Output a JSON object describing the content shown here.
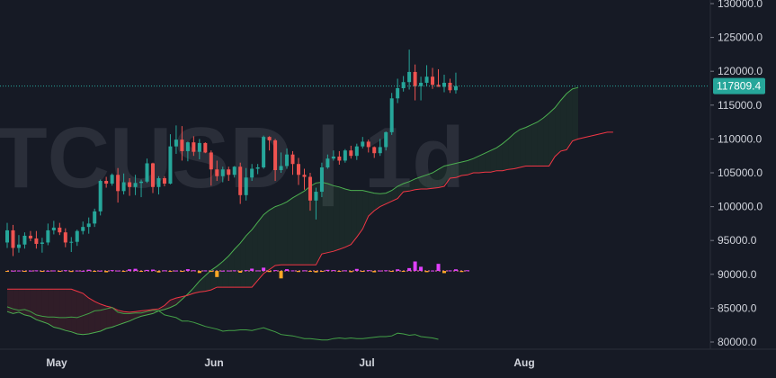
{
  "watermark": "TCUSD | 1d",
  "current_price_label": "117809.4",
  "colors": {
    "background": "#161a25",
    "up": "#26a69a",
    "down": "#ef5350",
    "cloud_green": "#4caf50",
    "cloud_red": "#f23645",
    "leading_span_a": "#4caf50",
    "leading_span_b": "#f23645",
    "lagging_span": "#43a047",
    "histogram_pos": "#e040fb",
    "histogram_neg": "#ffa726",
    "price_tag": "#26a69a",
    "price_line": "#26a69a"
  },
  "chart_data": {
    "type": "candlestick",
    "symbol_watermark": "TCUSD | 1d",
    "y_axis": {
      "range": [
        80000,
        130000
      ],
      "ticks": [
        "130000.0",
        "125000.0",
        "120000.0",
        "115000.0",
        "110000.0",
        "105000.0",
        "100000.0",
        "95000.0",
        "90000.0",
        "85000.0",
        "80000.0"
      ]
    },
    "x_axis": {
      "labels": [
        "May",
        "Jun",
        "Jul",
        "Aug"
      ]
    },
    "current_price": 117809.4,
    "candles_start": "2025-04-23",
    "candles": [
      [
        94700,
        97600,
        93900,
        96500
      ],
      [
        96500,
        97300,
        92700,
        93900
      ],
      [
        93900,
        95800,
        93200,
        94400
      ],
      [
        94400,
        96200,
        93800,
        95700
      ],
      [
        95700,
        96400,
        94900,
        95300
      ],
      [
        95300,
        96400,
        93800,
        94500
      ],
      [
        94500,
        95400,
        93200,
        94700
      ],
      [
        94700,
        97500,
        94300,
        96500
      ],
      [
        96500,
        97900,
        95900,
        96900
      ],
      [
        96900,
        97600,
        95800,
        96200
      ],
      [
        96200,
        96800,
        94000,
        94700
      ],
      [
        94700,
        95500,
        93300,
        94800
      ],
      [
        94800,
        96600,
        94200,
        96400
      ],
      [
        96400,
        97800,
        95900,
        97000
      ],
      [
        97000,
        98400,
        96000,
        97500
      ],
      [
        97500,
        99700,
        97000,
        99300
      ],
      [
        99300,
        104000,
        98700,
        103800
      ],
      [
        103800,
        104400,
        102800,
        103400
      ],
      [
        103400,
        104900,
        103100,
        104700
      ],
      [
        104700,
        105700,
        100600,
        102300
      ],
      [
        102300,
        104900,
        101800,
        103600
      ],
      [
        103600,
        104200,
        101600,
        102900
      ],
      [
        102900,
        104700,
        101700,
        103500
      ],
      [
        103500,
        104000,
        101400,
        103700
      ],
      [
        103700,
        107100,
        103500,
        106400
      ],
      [
        106400,
        106500,
        102000,
        102900
      ],
      [
        102900,
        104500,
        101800,
        104200
      ],
      [
        104200,
        104500,
        103000,
        103400
      ],
      [
        103400,
        110700,
        103300,
        108900
      ],
      [
        108900,
        112000,
        107800,
        109900
      ],
      [
        109900,
        111900,
        106800,
        108200
      ],
      [
        108200,
        109600,
        106700,
        109500
      ],
      [
        109500,
        110400,
        107500,
        108100
      ],
      [
        108100,
        110000,
        107000,
        109400
      ],
      [
        109400,
        109500,
        107900,
        108000
      ],
      [
        108000,
        108300,
        103100,
        105500
      ],
      [
        105500,
        106800,
        103800,
        104500
      ],
      [
        104500,
        105900,
        103600,
        105500
      ],
      [
        105500,
        105900,
        103800,
        104700
      ],
      [
        104700,
        106000,
        104300,
        105900
      ],
      [
        105900,
        106500,
        100400,
        101700
      ],
      [
        101700,
        105700,
        100900,
        104300
      ],
      [
        104300,
        106300,
        103800,
        105600
      ],
      [
        105600,
        106300,
        104800,
        105800
      ],
      [
        105800,
        110500,
        105600,
        110300
      ],
      [
        110300,
        110400,
        108300,
        109800
      ],
      [
        109800,
        110000,
        103800,
        105400
      ],
      [
        105400,
        108000,
        105000,
        106000
      ],
      [
        106000,
        108600,
        105600,
        107700
      ],
      [
        107700,
        108200,
        104700,
        106300
      ],
      [
        106300,
        107200,
        103200,
        104700
      ],
      [
        104700,
        105600,
        102500,
        104400
      ],
      [
        104400,
        105000,
        99400,
        100900
      ],
      [
        100900,
        102800,
        98100,
        102200
      ],
      [
        102200,
        106500,
        101400,
        105800
      ],
      [
        105800,
        107700,
        105600,
        107100
      ],
      [
        107100,
        108300,
        106800,
        107400
      ],
      [
        107400,
        108200,
        106200,
        106800
      ],
      [
        106800,
        108500,
        106500,
        108300
      ],
      [
        108300,
        109000,
        107100,
        107500
      ],
      [
        107500,
        109300,
        106900,
        108900
      ],
      [
        108900,
        110300,
        108600,
        109600
      ],
      [
        109600,
        109900,
        108000,
        108800
      ],
      [
        108800,
        108900,
        107200,
        107900
      ],
      [
        107900,
        110000,
        107500,
        108800
      ],
      [
        108800,
        111100,
        108300,
        111000
      ],
      [
        111000,
        116800,
        110600,
        116000
      ],
      [
        116000,
        118900,
        115300,
        117500
      ],
      [
        117500,
        119300,
        117000,
        118400
      ],
      [
        118400,
        123200,
        117300,
        119900
      ],
      [
        119900,
        121000,
        115700,
        117800
      ],
      [
        117800,
        119200,
        115700,
        118300
      ],
      [
        118300,
        120900,
        117800,
        119200
      ],
      [
        119200,
        120500,
        117400,
        118000
      ],
      [
        118000,
        120300,
        117700,
        117700
      ],
      [
        117700,
        119500,
        116900,
        118300
      ],
      [
        118300,
        118900,
        116800,
        117200
      ],
      [
        117200,
        119800,
        116700,
        117809.4
      ]
    ],
    "ichimoku": {
      "leading_span_a": [
        [
          84500,
          84200,
          84400,
          84000,
          83800,
          83300,
          83000,
          82700,
          82200,
          82000,
          81700,
          81500,
          81200,
          81100,
          81200,
          81400,
          81600,
          82000,
          82200,
          82500,
          82800,
          83100,
          83500,
          83800,
          84000,
          84200,
          84600,
          84800,
          85100,
          85500,
          86300,
          87100,
          88000,
          89000,
          89800,
          90600,
          91200,
          91900,
          92700,
          93700,
          94600,
          95700,
          96600,
          97700,
          98800,
          99500,
          100000,
          100300,
          100700,
          101300,
          101800,
          102300,
          103000,
          103500,
          103600,
          103400,
          103100,
          102900,
          102600,
          102400,
          102400,
          102400,
          102200,
          102000,
          101900,
          102000,
          102400,
          103000,
          103400,
          103700,
          104100,
          104400,
          104700,
          105000,
          105500,
          106000,
          106200,
          106400,
          106600,
          106800,
          107100,
          107500,
          107900,
          108300,
          108700,
          109300,
          110000,
          110800,
          111400,
          111700,
          112100,
          112500,
          113100,
          113800,
          114600,
          115700,
          116700,
          117400,
          117600
        ]
      ],
      "leading_span_b": [
        [
          87800,
          87800,
          87800,
          87800,
          87800,
          87800,
          87800,
          87800,
          87800,
          87800,
          87800,
          87800,
          87500,
          87200,
          86500,
          86000,
          85600,
          85300,
          85100,
          84700,
          84500,
          84400,
          84500,
          84600,
          84700,
          84800,
          84900,
          85400,
          86200,
          86500,
          86700,
          86900,
          87200,
          87400,
          87500,
          87700,
          88100,
          88100,
          88100,
          88100,
          88100,
          88100,
          88100,
          89100,
          90100,
          90700,
          91300,
          91400,
          91400,
          91400,
          91400,
          91400,
          91400,
          91400,
          93000,
          93200,
          93400,
          93700,
          94000,
          94400,
          95500,
          96700,
          98600,
          99400,
          100000,
          100400,
          100800,
          101200,
          102200,
          102300,
          102500,
          102600,
          102600,
          102700,
          102800,
          103000,
          104200,
          104300,
          104600,
          104700,
          105000,
          105000,
          105100,
          105100,
          105300,
          105300,
          105500,
          105600,
          105800,
          106000,
          106000,
          106000,
          106000,
          106000,
          107400,
          108200,
          108400,
          109700,
          110000,
          110200,
          110400,
          110600,
          110800,
          111000,
          111000
        ]
      ],
      "lagging_span": [
        [
          85200,
          84900,
          84700,
          84800,
          84500,
          84000,
          83800,
          83700,
          83700,
          83600,
          83600,
          83700,
          83600,
          83900,
          84200,
          84600,
          84700,
          84900,
          85100,
          84400,
          84200,
          84200,
          84300,
          84300,
          84500,
          84700,
          84600,
          84000,
          83800,
          83600,
          83100,
          83100,
          82900,
          82600,
          82300,
          82100,
          81900,
          81600,
          81700,
          81700,
          81800,
          81800,
          81700,
          81900,
          82100,
          81800,
          81500,
          81100,
          81000,
          80900,
          80700,
          80500,
          80500,
          80400,
          80300,
          80300,
          80500,
          80600,
          80500,
          80600,
          80500,
          80500,
          80600,
          80700,
          80800,
          80800,
          80900,
          81300,
          81200,
          81000,
          81100,
          80800,
          80700,
          80600,
          80400
        ]
      ]
    },
    "histogram_baseline": 90500,
    "histogram": [
      -80,
      40,
      60,
      -120,
      50,
      90,
      -60,
      30,
      70,
      -40,
      110,
      -150,
      60,
      20,
      180,
      -90,
      40,
      -200,
      120,
      60,
      -50,
      240,
      320,
      -80,
      150,
      200,
      -220,
      90,
      -130,
      60,
      -40,
      260,
      100,
      -300,
      80,
      -140,
      -900,
      40,
      60,
      90,
      -260,
      120,
      340,
      80,
      480,
      -160,
      120,
      -1100,
      260,
      80,
      -160,
      90,
      -40,
      -220,
      -120,
      160,
      120,
      -60,
      90,
      -180,
      300,
      -80,
      120,
      -200,
      60,
      100,
      -60,
      240,
      -80,
      420,
      1400,
      620,
      -180,
      60,
      1050,
      -320,
      80,
      240,
      -160,
      100
    ]
  }
}
